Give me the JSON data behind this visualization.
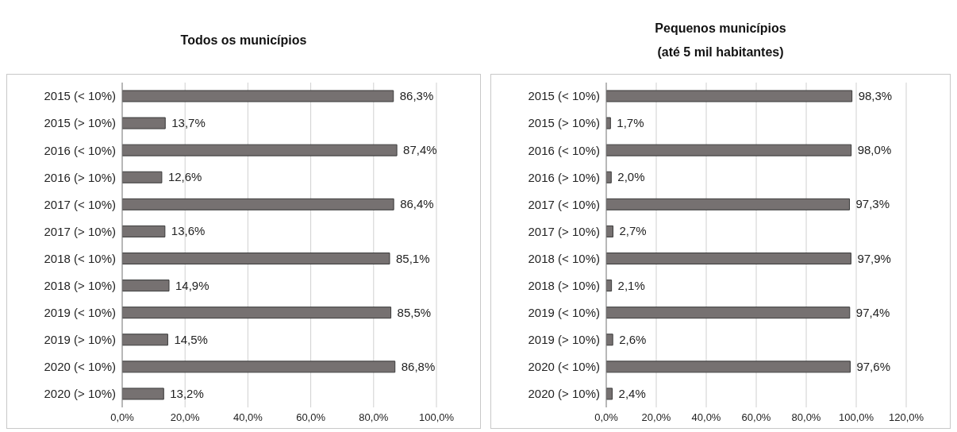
{
  "chart_data": [
    {
      "type": "bar",
      "orientation": "horizontal",
      "title": "Todos os municípios",
      "categories": [
        "2015 (< 10%)",
        "2015 (> 10%)",
        "2016 (< 10%)",
        "2016 (> 10%)",
        "2017 (< 10%)",
        "2017 (> 10%)",
        "2018 (< 10%)",
        "2018 (> 10%)",
        "2019 (< 10%)",
        "2019 (> 10%)",
        "2020 (< 10%)",
        "2020 (> 10%)"
      ],
      "values": [
        86.3,
        13.7,
        87.4,
        12.6,
        86.4,
        13.6,
        85.1,
        14.9,
        85.5,
        14.5,
        86.8,
        13.2
      ],
      "value_labels": [
        "86,3%",
        "13,7%",
        "87,4%",
        "12,6%",
        "86,4%",
        "13,6%",
        "85,1%",
        "14,9%",
        "85,5%",
        "14,5%",
        "86,8%",
        "13,2%"
      ],
      "color": "#767171",
      "xlim": [
        0,
        100
      ],
      "xticks": [
        {
          "value": 0,
          "label": "0,0%"
        },
        {
          "value": 20,
          "label": "20,0%"
        },
        {
          "value": 40,
          "label": "40,0%"
        },
        {
          "value": 60,
          "label": "60,0%"
        },
        {
          "value": 80,
          "label": "80,0%"
        },
        {
          "value": 100,
          "label": "100,0%"
        }
      ],
      "grid": "x",
      "legend": false
    },
    {
      "type": "bar",
      "orientation": "horizontal",
      "title": "Pequenos municípios",
      "subtitle": "(até 5 mil habitantes)",
      "categories": [
        "2015 (< 10%)",
        "2015 (> 10%)",
        "2016 (< 10%)",
        "2016 (> 10%)",
        "2017 (< 10%)",
        "2017 (> 10%)",
        "2018 (< 10%)",
        "2018 (> 10%)",
        "2019 (< 10%)",
        "2019 (> 10%)",
        "2020 (< 10%)",
        "2020 (> 10%)"
      ],
      "values": [
        98.3,
        1.7,
        98.0,
        2.0,
        97.3,
        2.7,
        97.9,
        2.1,
        97.4,
        2.6,
        97.6,
        2.4
      ],
      "value_labels": [
        "98,3%",
        "1,7%",
        "98,0%",
        "2,0%",
        "97,3%",
        "2,7%",
        "97,9%",
        "2,1%",
        "97,4%",
        "2,6%",
        "97,6%",
        "2,4%"
      ],
      "color": "#767171",
      "xlim": [
        0,
        120
      ],
      "xticks": [
        {
          "value": 0,
          "label": "0,0%"
        },
        {
          "value": 20,
          "label": "20,0%"
        },
        {
          "value": 40,
          "label": "40,0%"
        },
        {
          "value": 60,
          "label": "60,0%"
        },
        {
          "value": 80,
          "label": "80,0%"
        },
        {
          "value": 100,
          "label": "100,0%"
        },
        {
          "value": 120,
          "label": "120,0%"
        }
      ],
      "grid": "x",
      "legend": false
    }
  ]
}
